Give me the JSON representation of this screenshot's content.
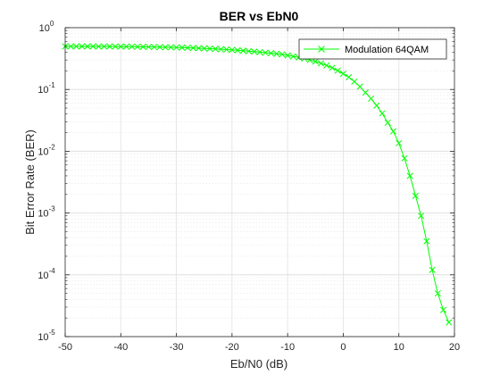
{
  "chart_data": {
    "type": "line",
    "title": "BER vs EbN0",
    "xlabel": "Eb/N0 (dB)",
    "ylabel": "Bit Error Rate (BER)",
    "xlim": [
      -50,
      20
    ],
    "ylim": [
      1e-05,
      1
    ],
    "yscale": "log",
    "grid": true,
    "minor_grid": true,
    "legend_position": "top-right",
    "x_ticks": [
      -50,
      -40,
      -30,
      -20,
      -10,
      0,
      10,
      20
    ],
    "x_tick_labels": [
      "-50",
      "-40",
      "-30",
      "-20",
      "-10",
      "0",
      "10",
      "20"
    ],
    "y_ticks": [
      1e-05,
      0.0001,
      0.001,
      0.01,
      0.1,
      1
    ],
    "y_tick_labels": [
      {
        "base": "10",
        "exp": "-5"
      },
      {
        "base": "10",
        "exp": "-4"
      },
      {
        "base": "10",
        "exp": "-3"
      },
      {
        "base": "10",
        "exp": "-2"
      },
      {
        "base": "10",
        "exp": "-1"
      },
      {
        "base": "10",
        "exp": "0"
      }
    ],
    "series": [
      {
        "name": "Modulation 64QAM",
        "color": "#00ff00",
        "marker": "x",
        "x": [
          -50,
          -49,
          -48,
          -47,
          -46,
          -45,
          -44,
          -43,
          -42,
          -41,
          -40,
          -39,
          -38,
          -37,
          -36,
          -35,
          -34,
          -33,
          -32,
          -31,
          -30,
          -29,
          -28,
          -27,
          -26,
          -25,
          -24,
          -23,
          -22,
          -21,
          -20,
          -19,
          -18,
          -17,
          -16,
          -15,
          -14,
          -13,
          -12,
          -11,
          -10,
          -9,
          -8,
          -7,
          -6,
          -5,
          -4,
          -3,
          -2,
          -1,
          0,
          1,
          2,
          3,
          4,
          5,
          6,
          7,
          8,
          9,
          10,
          11,
          12,
          13,
          14,
          15,
          16,
          17,
          18,
          19
        ],
        "values": [
          0.499,
          0.499,
          0.499,
          0.498,
          0.498,
          0.498,
          0.497,
          0.497,
          0.496,
          0.495,
          0.494,
          0.494,
          0.493,
          0.491,
          0.49,
          0.489,
          0.487,
          0.485,
          0.483,
          0.481,
          0.479,
          0.476,
          0.473,
          0.47,
          0.466,
          0.462,
          0.458,
          0.453,
          0.448,
          0.443,
          0.437,
          0.431,
          0.424,
          0.417,
          0.41,
          0.402,
          0.394,
          0.386,
          0.378,
          0.37,
          0.356,
          0.343,
          0.33,
          0.316,
          0.3,
          0.283,
          0.265,
          0.245,
          0.224,
          0.202,
          0.18,
          0.158,
          0.134,
          0.111,
          0.089,
          0.071,
          0.055,
          0.041,
          0.029,
          0.021,
          0.0135,
          0.0077,
          0.004,
          0.0019,
          0.0009,
          0.00035,
          0.00012,
          5e-05,
          2.7e-05,
          1.7e-05
        ]
      }
    ]
  }
}
